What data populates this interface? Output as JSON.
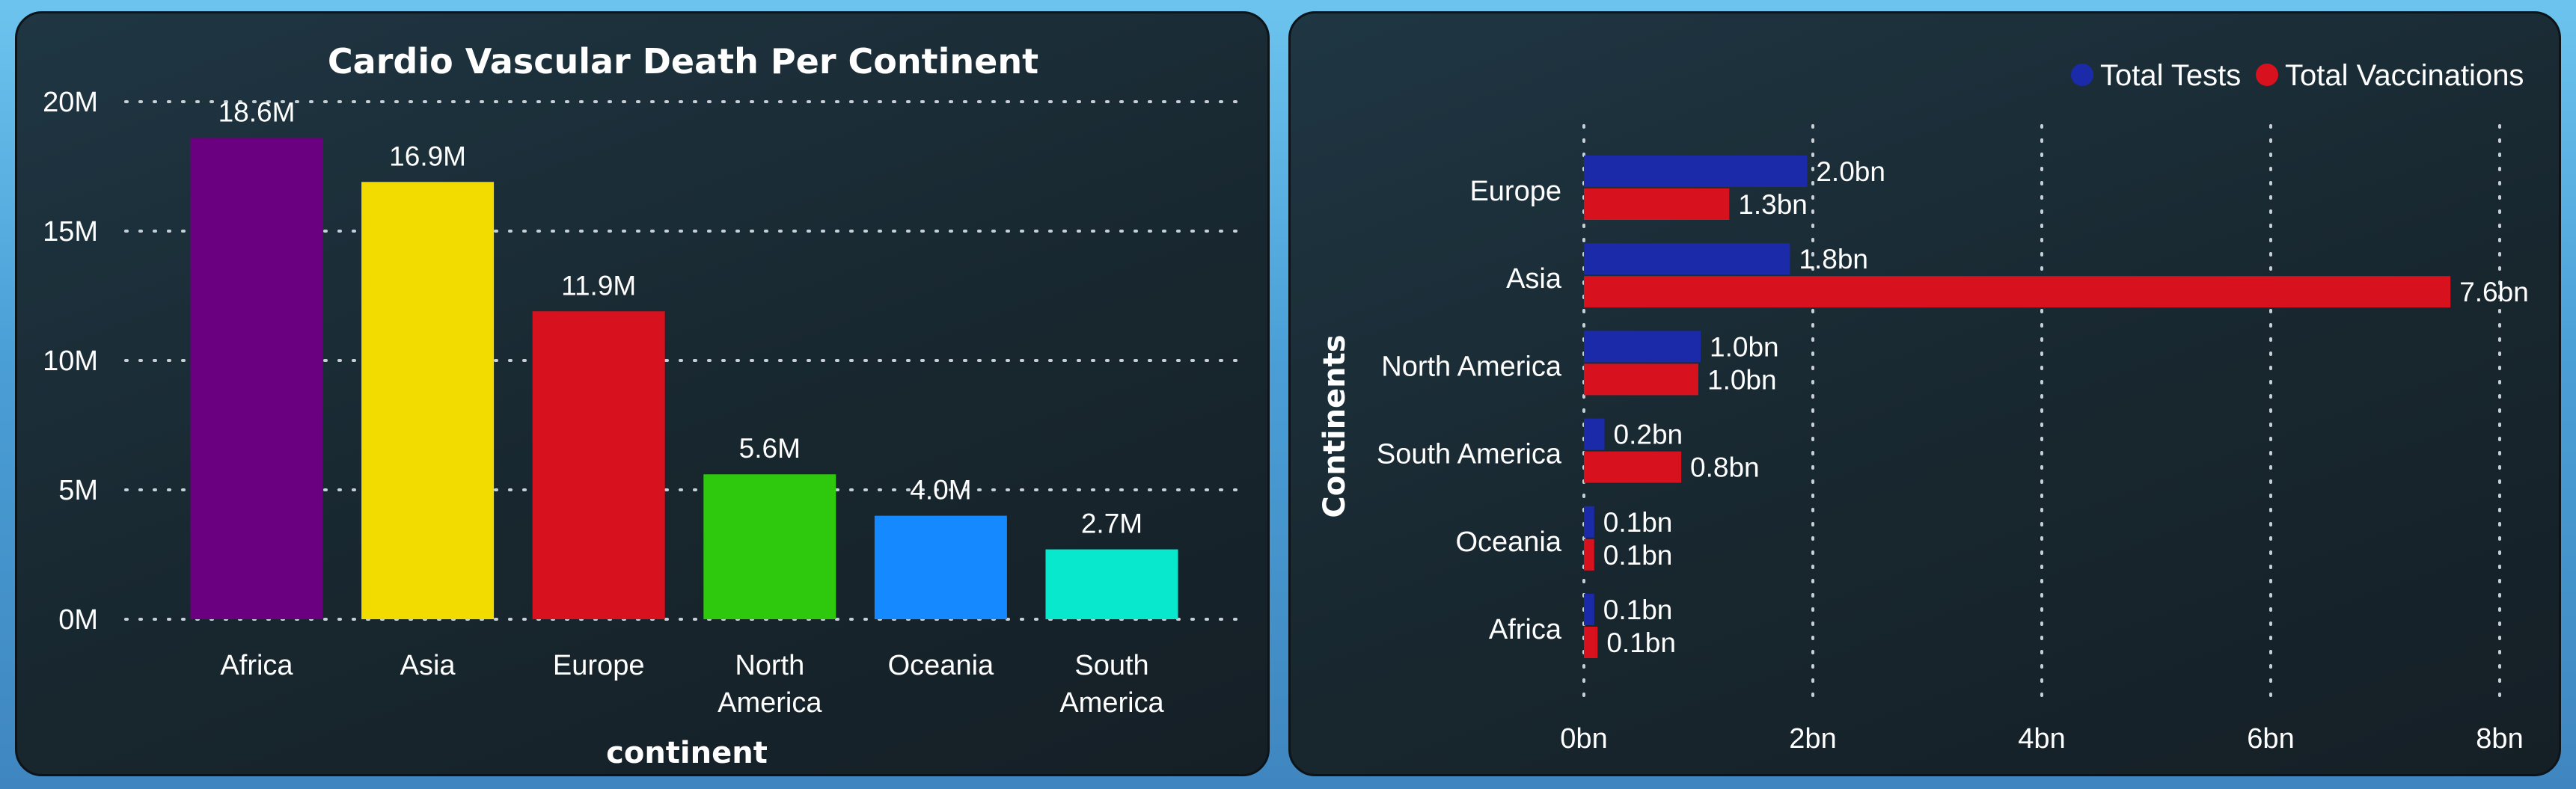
{
  "chart_data": [
    {
      "type": "bar",
      "title": "Cardio Vascular Death Per Continent",
      "xlabel": "continent",
      "ylabel": "",
      "categories": [
        [
          "Africa"
        ],
        [
          "Asia"
        ],
        [
          "Europe"
        ],
        [
          "North",
          "America"
        ],
        [
          "Oceania"
        ],
        [
          "South",
          "America"
        ]
      ],
      "values": [
        18.6,
        16.9,
        11.9,
        5.6,
        4.0,
        2.7
      ],
      "value_unit": "M",
      "data_labels": [
        "18.6M",
        "16.9M",
        "11.9M",
        "5.6M",
        "4.0M",
        "2.7M"
      ],
      "colors": [
        "#6a0080",
        "#f2dc00",
        "#d8111e",
        "#2ec80c",
        "#1589ff",
        "#07e8cc"
      ],
      "ylim": [
        0,
        20
      ],
      "yticks": [
        {
          "value": 20,
          "label": "20M"
        },
        {
          "value": 15,
          "label": "15M"
        },
        {
          "value": 10,
          "label": "10M"
        },
        {
          "value": 5,
          "label": "5M"
        },
        {
          "value": 0,
          "label": "0M"
        }
      ],
      "grid": true
    },
    {
      "type": "bar",
      "orientation": "horizontal",
      "title": "",
      "xlabel": "",
      "ylabel": "Continents",
      "categories": [
        "Europe",
        "Asia",
        "North America",
        "South America",
        "Oceania",
        "Africa"
      ],
      "series": [
        {
          "name": "Total Tests",
          "color": "#1a2aa8",
          "values": [
            1.95,
            1.8,
            1.02,
            0.18,
            0.09,
            0.09
          ],
          "labels": [
            "2.0bn",
            "1.8bn",
            "1.0bn",
            "0.2bn",
            "0.1bn",
            "0.1bn"
          ]
        },
        {
          "name": "Total Vaccinations",
          "color": "#d8111e",
          "values": [
            1.27,
            7.57,
            1.0,
            0.85,
            0.09,
            0.12
          ],
          "labels": [
            "1.3bn",
            "7.6bn",
            "1.0bn",
            "0.8bn",
            "0.1bn",
            "0.1bn"
          ]
        }
      ],
      "xlim": [
        0,
        8
      ],
      "xticks": [
        {
          "value": 0,
          "label": "0bn"
        },
        {
          "value": 2,
          "label": "2bn"
        },
        {
          "value": 4,
          "label": "4bn"
        },
        {
          "value": 6,
          "label": "6bn"
        },
        {
          "value": 8,
          "label": "8bn"
        }
      ],
      "legend": "top-right",
      "grid": true
    }
  ]
}
